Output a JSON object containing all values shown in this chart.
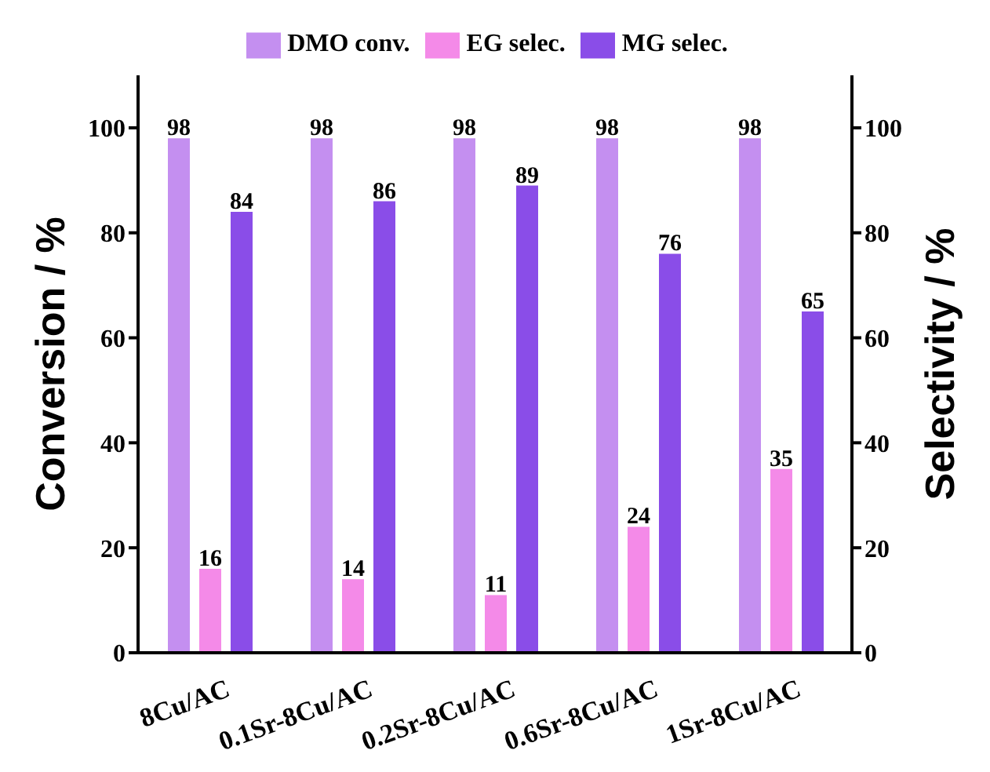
{
  "chart_data": {
    "type": "bar",
    "categories": [
      "8Cu/AC",
      "0.1Sr-8Cu/AC",
      "0.2Sr-8Cu/AC",
      "0.6Sr-8Cu/AC",
      "1Sr-8Cu/AC"
    ],
    "series": [
      {
        "name": "DMO conv.",
        "color": "#c48ff0",
        "values": [
          98,
          98,
          98,
          98,
          98
        ]
      },
      {
        "name": "EG selec.",
        "color": "#f48ae8",
        "values": [
          16,
          14,
          11,
          24,
          35
        ],
        "axis": "y2"
      },
      {
        "name": "MG selec.",
        "color": "#8a4de8",
        "values": [
          84,
          86,
          89,
          76,
          65
        ],
        "axis": "y2"
      }
    ],
    "ylabel": "Conversion / %",
    "y2label": "Selectivity / %",
    "ylim": [
      0,
      110
    ],
    "yticks": [
      0,
      20,
      40,
      60,
      80,
      100
    ],
    "y2lim": [
      0,
      110
    ],
    "y2ticks": [
      0,
      20,
      40,
      60,
      80,
      100
    ],
    "data_labels": true,
    "legend": "top",
    "grid": false
  }
}
